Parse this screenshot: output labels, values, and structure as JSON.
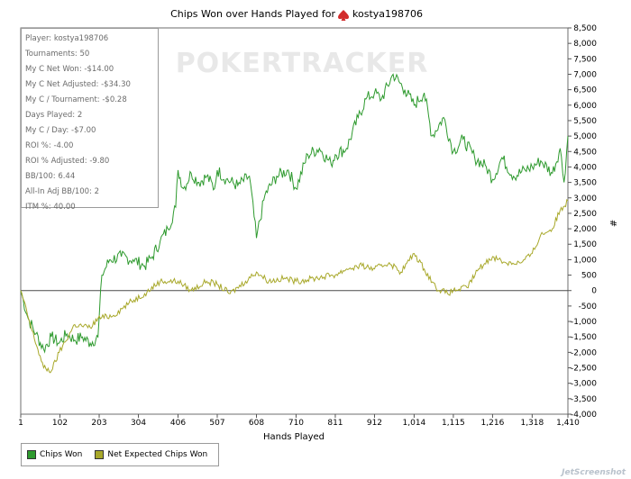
{
  "chart_data": {
    "type": "line",
    "title_prefix": "Chips Won over Hands Played for",
    "title_player": "kostya198706",
    "watermark": "POKERTRACKER",
    "xlabel": "Hands Played",
    "ylabel": "#",
    "xlim": [
      1,
      1410
    ],
    "ylim": [
      -4000,
      8500
    ],
    "x_ticks": [
      1,
      102,
      203,
      304,
      406,
      507,
      608,
      710,
      811,
      912,
      1014,
      1115,
      1216,
      1318,
      1410
    ],
    "x_tick_labels": [
      "1",
      "102",
      "203",
      "304",
      "406",
      "507",
      "608",
      "710",
      "811",
      "912",
      "1,014",
      "1,115",
      "1,216",
      "1,318",
      "1,410"
    ],
    "y_ticks": [
      -4000,
      -3500,
      -3000,
      -2500,
      -2000,
      -1500,
      -1000,
      -500,
      0,
      500,
      1000,
      1500,
      2000,
      2500,
      3000,
      3500,
      4000,
      4500,
      5000,
      5500,
      6000,
      6500,
      7000,
      7500,
      8000,
      8500
    ],
    "y_tick_labels": [
      "-4,000",
      "-3,500",
      "-3,000",
      "-2,500",
      "-2,000",
      "-1,500",
      "-1,000",
      "-500",
      "0",
      "500",
      "1,000",
      "1,500",
      "2,000",
      "2,500",
      "3,000",
      "3,500",
      "4,000",
      "4,500",
      "5,000",
      "5,500",
      "6,000",
      "6,500",
      "7,000",
      "7,500",
      "8,000",
      "8,500"
    ],
    "series": [
      {
        "name": "Chips Won",
        "color": "#2e9a2e",
        "x": [
          1,
          20,
          40,
          60,
          80,
          100,
          120,
          140,
          160,
          180,
          200,
          210,
          230,
          260,
          290,
          320,
          340,
          360,
          380,
          400,
          406,
          420,
          440,
          460,
          480,
          500,
          507,
          530,
          560,
          590,
          608,
          630,
          660,
          690,
          710,
          740,
          770,
          800,
          811,
          840,
          870,
          890,
          912,
          930,
          960,
          990,
          1014,
          1040,
          1060,
          1090,
          1115,
          1140,
          1170,
          1200,
          1216,
          1240,
          1270,
          1300,
          1318,
          1340,
          1370,
          1390,
          1400,
          1410
        ],
        "values": [
          0,
          -900,
          -1400,
          -1900,
          -1500,
          -1700,
          -1400,
          -1600,
          -1500,
          -1700,
          -1500,
          500,
          1000,
          1100,
          1000,
          800,
          1100,
          1600,
          2000,
          2700,
          3900,
          3300,
          3800,
          3500,
          3700,
          3300,
          3900,
          3600,
          3400,
          3700,
          1700,
          3100,
          3700,
          3900,
          3300,
          4400,
          4600,
          4100,
          4400,
          4600,
          5600,
          6200,
          6400,
          6200,
          7000,
          6500,
          6000,
          6400,
          5000,
          5600,
          4500,
          4900,
          4300,
          4000,
          3600,
          4300,
          3700,
          3900,
          4000,
          4200,
          3800,
          4600,
          3500,
          5000
        ]
      },
      {
        "name": "Net Expected Chips Won",
        "color": "#a8a82a",
        "x": [
          1,
          30,
          60,
          80,
          100,
          140,
          180,
          200,
          240,
          280,
          320,
          360,
          406,
          440,
          480,
          507,
          540,
          580,
          608,
          640,
          680,
          710,
          760,
          800,
          811,
          840,
          880,
          912,
          950,
          980,
          1014,
          1040,
          1070,
          1100,
          1115,
          1150,
          1180,
          1216,
          1250,
          1290,
          1318,
          1340,
          1370,
          1390,
          1410
        ],
        "values": [
          0,
          -1300,
          -2500,
          -2600,
          -2000,
          -1100,
          -1200,
          -900,
          -800,
          -400,
          -100,
          300,
          300,
          0,
          300,
          200,
          -100,
          300,
          600,
          300,
          400,
          300,
          400,
          500,
          500,
          700,
          800,
          700,
          900,
          600,
          1200,
          700,
          100,
          -100,
          0,
          100,
          700,
          1100,
          900,
          900,
          1200,
          1800,
          2000,
          2600,
          2900
        ]
      }
    ],
    "stats": [
      "Player: kostya198706",
      "Tournaments: 50",
      "My C Net Won: -$14.00",
      "My C Net Adjusted: -$34.30",
      "My C / Tournament: -$0.28",
      "Days Played: 2",
      "My C / Day: -$7.00",
      "ROI %: -4.00",
      "ROI % Adjusted: -9.80",
      "BB/100: 6.44",
      "All-In Adj BB/100: 2",
      "ITM %: 40.00"
    ]
  },
  "footer": {
    "logo_text": "JetScreenshot"
  }
}
